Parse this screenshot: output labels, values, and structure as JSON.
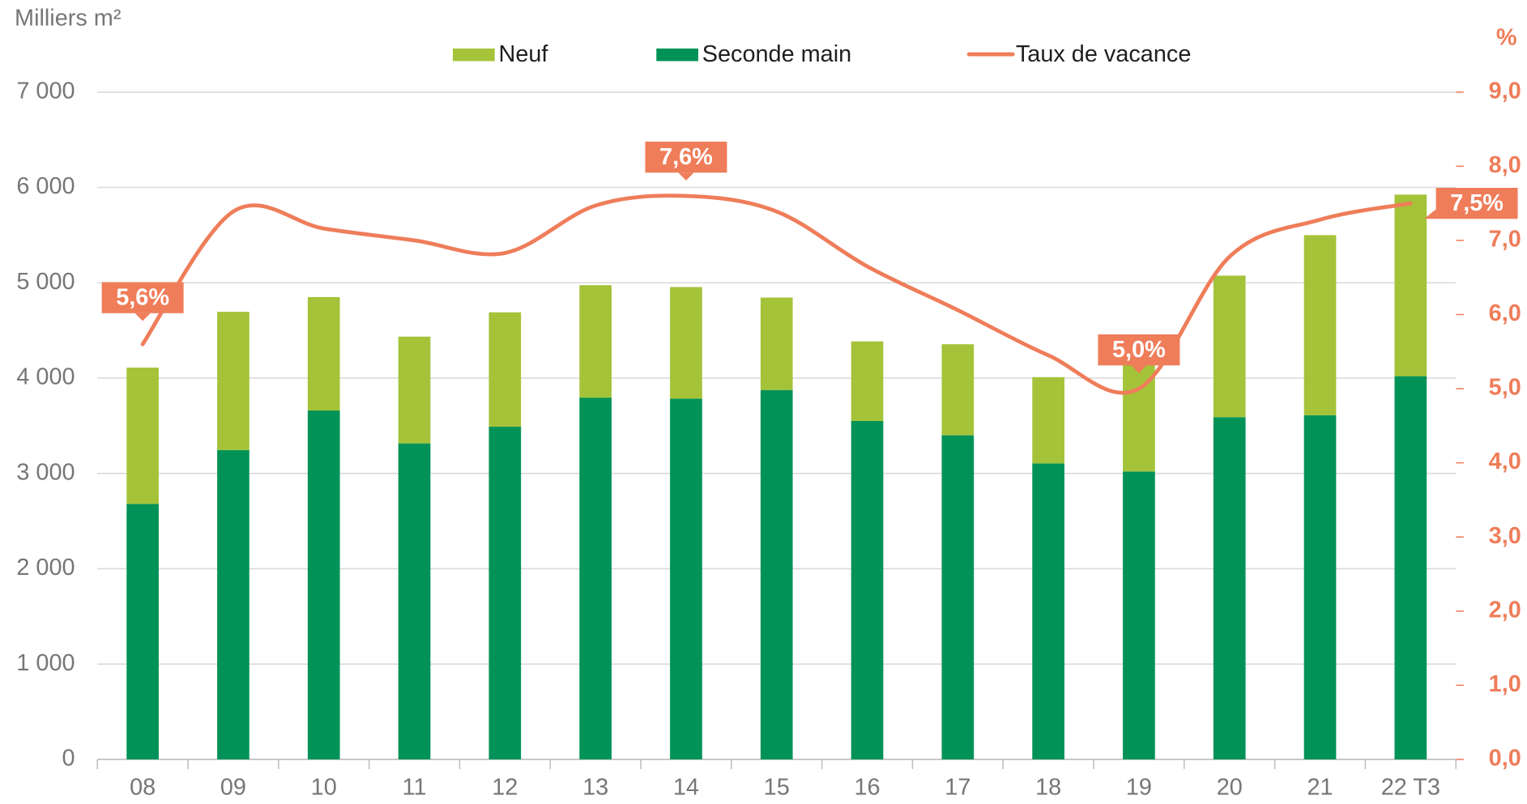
{
  "chart_data": {
    "type": "bar",
    "y_label": "Milliers m²",
    "y2_label": "%",
    "categories": [
      "08",
      "09",
      "10",
      "11",
      "12",
      "13",
      "14",
      "15",
      "16",
      "17",
      "18",
      "19",
      "20",
      "21",
      "22 T3"
    ],
    "series": [
      {
        "name": "Seconde main",
        "color": "#009257",
        "type": "bar",
        "stack": true,
        "values": [
          2680,
          3245,
          3660,
          3315,
          3490,
          3795,
          3785,
          3875,
          3550,
          3400,
          3105,
          3020,
          3590,
          3610,
          4020
        ]
      },
      {
        "name": "Neuf",
        "color": "#a4c339",
        "type": "bar",
        "stack": true,
        "values": [
          1430,
          1450,
          1190,
          1120,
          1200,
          1180,
          1170,
          970,
          835,
          955,
          905,
          1150,
          1485,
          1890,
          1905
        ]
      },
      {
        "name": "Taux de vacance",
        "color": "#ef7d5a",
        "type": "line",
        "axis": "y2",
        "values": [
          5.6,
          7.39,
          7.16,
          7.0,
          6.83,
          7.47,
          7.6,
          7.39,
          6.65,
          6.06,
          5.45,
          5.0,
          6.78,
          7.28,
          7.5
        ],
        "value_labels": [
          "5,6%",
          null,
          null,
          null,
          null,
          null,
          "7,6%",
          null,
          null,
          null,
          null,
          "5,0%",
          null,
          null,
          "7,5%"
        ]
      }
    ],
    "legend_order": [
      1,
      0,
      2
    ],
    "ylim": [
      0,
      7000
    ],
    "yticks": [
      0,
      {
        "value": 1000,
        "label": "1 000"
      },
      {
        "value": 2000,
        "label": "2 000"
      },
      {
        "value": 3000,
        "label": "3 000"
      },
      {
        "value": 4000,
        "label": "4 000"
      },
      {
        "value": 5000,
        "label": "5 000"
      },
      {
        "value": 6000,
        "label": "6 000"
      },
      {
        "value": 7000,
        "label": "7 000"
      }
    ],
    "y2lim": [
      0,
      9
    ],
    "y2ticks": [
      {
        "value": 0,
        "label": "0,0"
      },
      {
        "value": 1,
        "label": "1,0"
      },
      {
        "value": 2,
        "label": "2,0"
      },
      {
        "value": 3,
        "label": "3,0"
      },
      {
        "value": 4,
        "label": "4,0"
      },
      {
        "value": 5,
        "label": "5,0"
      },
      {
        "value": 6,
        "label": "6,0"
      },
      {
        "value": 7,
        "label": "7,0"
      },
      {
        "value": 8,
        "label": "8,0"
      },
      {
        "value": 9,
        "label": "9,0"
      }
    ],
    "grid": true
  }
}
